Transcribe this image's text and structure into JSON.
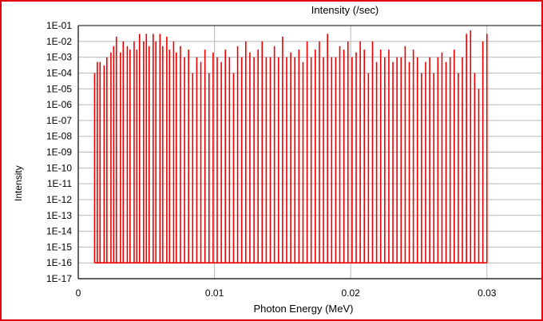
{
  "chart_data": {
    "type": "bar",
    "title": "Intensity (/sec)",
    "xlabel": "Photon Energy (MeV)",
    "ylabel": "Intensity",
    "y_scale": "log",
    "xlim": [
      0,
      0.034
    ],
    "ylim": [
      1e-17,
      0.1
    ],
    "x_ticks": [
      {
        "value": 0,
        "label": "0"
      },
      {
        "value": 0.01,
        "label": "0.01"
      },
      {
        "value": 0.02,
        "label": "0.02"
      },
      {
        "value": 0.03,
        "label": "0.03"
      }
    ],
    "y_ticks": [
      {
        "value": 0.1,
        "label": "1E-01"
      },
      {
        "value": 0.01,
        "label": "1E-02"
      },
      {
        "value": 0.001,
        "label": "1E-03"
      },
      {
        "value": 0.0001,
        "label": "1E-04"
      },
      {
        "value": 1e-05,
        "label": "1E-05"
      },
      {
        "value": 1e-06,
        "label": "1E-06"
      },
      {
        "value": 1e-07,
        "label": "1E-07"
      },
      {
        "value": 1e-08,
        "label": "1E-08"
      },
      {
        "value": 1e-09,
        "label": "1E-09"
      },
      {
        "value": 1e-10,
        "label": "1E-10"
      },
      {
        "value": 1e-11,
        "label": "1E-11"
      },
      {
        "value": 1e-12,
        "label": "1E-12"
      },
      {
        "value": 1e-13,
        "label": "1E-13"
      },
      {
        "value": 1e-14,
        "label": "1E-14"
      },
      {
        "value": 1e-15,
        "label": "1E-15"
      },
      {
        "value": 1e-16,
        "label": "1E-16"
      },
      {
        "value": 1e-17,
        "label": "1E-17"
      }
    ],
    "grid": true,
    "series_color": "#ee0000",
    "x": [
      0.0012,
      0.0014,
      0.0016,
      0.0019,
      0.0021,
      0.0024,
      0.0026,
      0.0028,
      0.0031,
      0.0033,
      0.0036,
      0.0038,
      0.0041,
      0.0043,
      0.0045,
      0.0048,
      0.005,
      0.0052,
      0.0055,
      0.0057,
      0.006,
      0.0062,
      0.0065,
      0.0067,
      0.007,
      0.0072,
      0.0075,
      0.0078,
      0.0081,
      0.0084,
      0.0087,
      0.009,
      0.0093,
      0.0096,
      0.0099,
      0.0102,
      0.0105,
      0.0108,
      0.0111,
      0.0114,
      0.0117,
      0.012,
      0.0123,
      0.0126,
      0.0129,
      0.0132,
      0.0135,
      0.0138,
      0.0141,
      0.0144,
      0.0147,
      0.015,
      0.0153,
      0.0156,
      0.0159,
      0.0162,
      0.0165,
      0.0168,
      0.0171,
      0.0174,
      0.0177,
      0.018,
      0.0183,
      0.0186,
      0.0189,
      0.0192,
      0.0195,
      0.0198,
      0.0201,
      0.0204,
      0.0207,
      0.021,
      0.0213,
      0.0216,
      0.0219,
      0.0222,
      0.0225,
      0.0228,
      0.0231,
      0.0234,
      0.0237,
      0.024,
      0.0243,
      0.0246,
      0.0249,
      0.0252,
      0.0255,
      0.0258,
      0.0261,
      0.0264,
      0.0267,
      0.027,
      0.0273,
      0.0276,
      0.0279,
      0.0282,
      0.0285,
      0.0288,
      0.0291,
      0.0294,
      0.0297,
      0.03
    ],
    "values": [
      0.0001,
      0.0005,
      0.0005,
      0.0003,
      0.001,
      0.002,
      0.005,
      0.02,
      0.002,
      0.01,
      0.005,
      0.003,
      0.01,
      0.003,
      0.03,
      0.01,
      0.03,
      0.005,
      0.03,
      0.01,
      0.03,
      0.005,
      0.02,
      0.003,
      0.01,
      0.002,
      0.005,
      0.001,
      0.003,
      0.0001,
      0.001,
      0.0005,
      0.003,
      0.0001,
      0.002,
      0.001,
      0.0005,
      0.003,
      0.001,
      0.0001,
      0.005,
      0.001,
      0.01,
      0.002,
      0.001,
      0.003,
      0.01,
      0.001,
      0.001,
      0.005,
      0.001,
      0.02,
      0.001,
      0.002,
      0.001,
      0.003,
      0.0005,
      0.01,
      0.001,
      0.003,
      0.01,
      0.001,
      0.03,
      0.001,
      0.001,
      0.005,
      0.003,
      0.01,
      0.001,
      0.002,
      0.01,
      0.003,
      0.0001,
      0.01,
      0.0005,
      0.003,
      0.001,
      0.003,
      0.0005,
      0.001,
      0.001,
      0.005,
      0.0005,
      0.003,
      0.001,
      0.0001,
      0.0005,
      0.001,
      0.0001,
      0.001,
      0.002,
      0.0005,
      0.001,
      0.003,
      0.0001,
      0.001,
      0.03,
      0.05,
      0.0001,
      1e-05,
      0.01,
      0.03
    ]
  }
}
